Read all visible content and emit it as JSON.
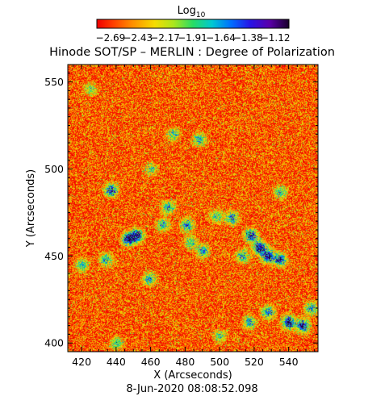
{
  "chart_data": {
    "type": "heatmap",
    "title": "Hinode SOT/SP – MERLIN : Degree of Polarization",
    "xlabel": "X (Arcseconds)",
    "ylabel": "Y (Arcseconds)",
    "timestamp": "8-Jun-2020 08:08:52.098",
    "xlim": [
      412,
      557
    ],
    "ylim": [
      395,
      560
    ],
    "x_ticks": [
      420,
      440,
      460,
      480,
      500,
      520,
      540
    ],
    "y_ticks": [
      400,
      450,
      500,
      550
    ],
    "colorbar": {
      "label": "Log",
      "label_subscript": "10",
      "min": -2.82,
      "max": -0.99,
      "tick_labels": [
        "−2.69",
        "−2.43",
        "−2.17",
        "−1.91",
        "−1.64",
        "−1.38",
        "−1.12"
      ],
      "tick_values": [
        -2.69,
        -2.43,
        -2.17,
        -1.91,
        -1.64,
        -1.38,
        -1.12
      ]
    },
    "features": [
      {
        "x": 447,
        "y": 460,
        "strength": 1.0
      },
      {
        "x": 452,
        "y": 462,
        "strength": 0.9
      },
      {
        "x": 437,
        "y": 488,
        "strength": 0.8
      },
      {
        "x": 481,
        "y": 468,
        "strength": 0.7
      },
      {
        "x": 470,
        "y": 478,
        "strength": 0.6
      },
      {
        "x": 467,
        "y": 468,
        "strength": 0.55
      },
      {
        "x": 490,
        "y": 453,
        "strength": 0.6
      },
      {
        "x": 483,
        "y": 458,
        "strength": 0.5
      },
      {
        "x": 498,
        "y": 473,
        "strength": 0.5
      },
      {
        "x": 507,
        "y": 472,
        "strength": 0.7
      },
      {
        "x": 523,
        "y": 455,
        "strength": 1.0
      },
      {
        "x": 528,
        "y": 450,
        "strength": 1.0
      },
      {
        "x": 518,
        "y": 462,
        "strength": 0.85
      },
      {
        "x": 535,
        "y": 448,
        "strength": 0.8
      },
      {
        "x": 513,
        "y": 450,
        "strength": 0.6
      },
      {
        "x": 540,
        "y": 412,
        "strength": 1.0
      },
      {
        "x": 548,
        "y": 410,
        "strength": 0.9
      },
      {
        "x": 528,
        "y": 418,
        "strength": 0.7
      },
      {
        "x": 517,
        "y": 412,
        "strength": 0.6
      },
      {
        "x": 553,
        "y": 420,
        "strength": 0.6
      },
      {
        "x": 434,
        "y": 448,
        "strength": 0.6
      },
      {
        "x": 420,
        "y": 445,
        "strength": 0.55
      },
      {
        "x": 459,
        "y": 437,
        "strength": 0.6
      },
      {
        "x": 488,
        "y": 517,
        "strength": 0.6
      },
      {
        "x": 473,
        "y": 520,
        "strength": 0.5
      },
      {
        "x": 535,
        "y": 487,
        "strength": 0.5
      },
      {
        "x": 440,
        "y": 400,
        "strength": 0.5
      },
      {
        "x": 500,
        "y": 404,
        "strength": 0.45
      },
      {
        "x": 425,
        "y": 546,
        "strength": 0.4
      },
      {
        "x": 460,
        "y": 500,
        "strength": 0.45
      }
    ]
  }
}
